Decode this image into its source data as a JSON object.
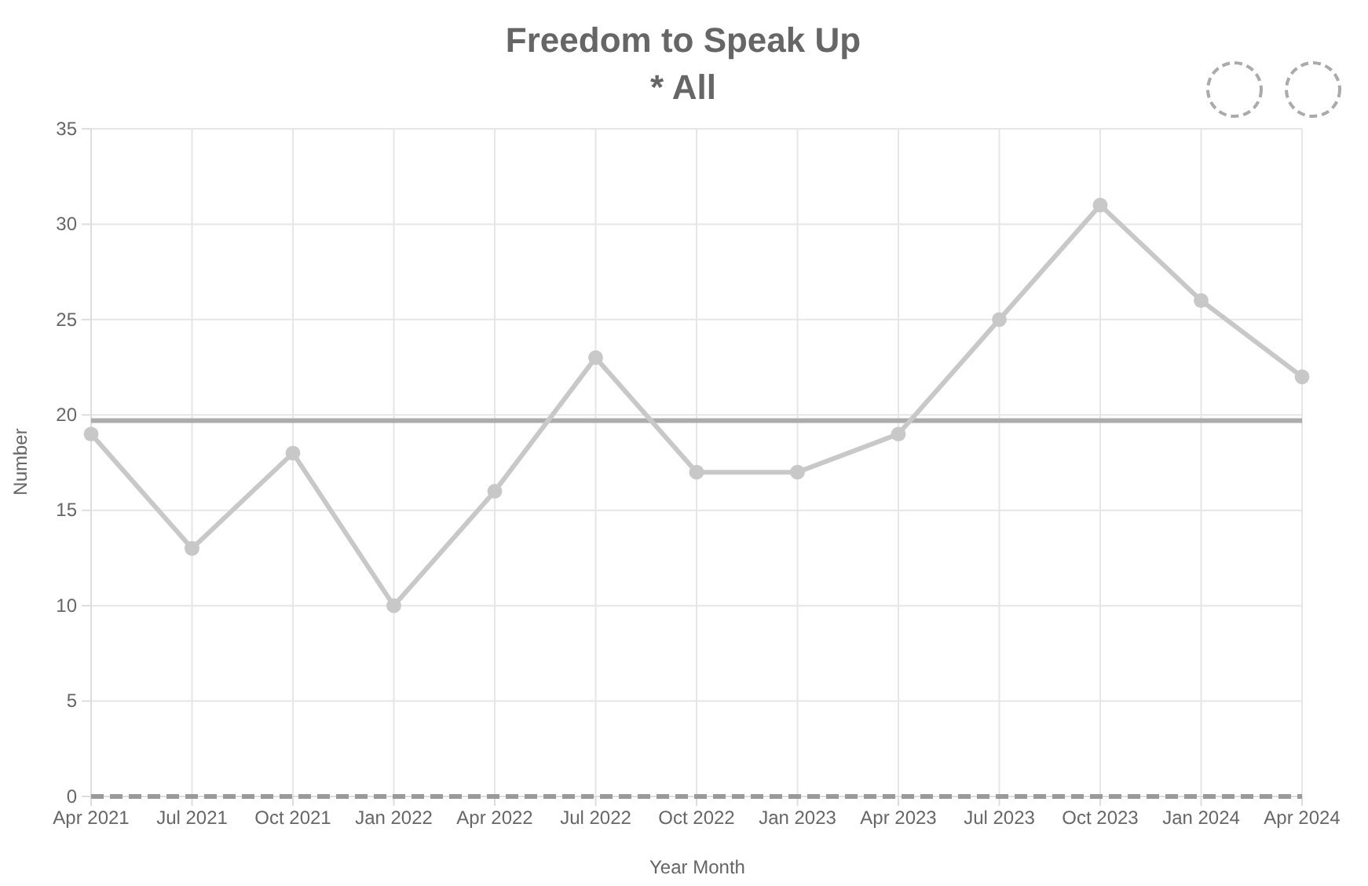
{
  "chart_data": {
    "type": "line",
    "title": "Freedom to Speak Up",
    "subtitle": "* All",
    "xlabel": "Year Month",
    "ylabel": "Number",
    "categories": [
      "Apr 2021",
      "Jul 2021",
      "Oct 2021",
      "Jan 2022",
      "Apr 2022",
      "Jul 2022",
      "Oct 2022",
      "Jan 2023",
      "Apr 2023",
      "Jul 2023",
      "Oct 2023",
      "Jan 2024",
      "Apr 2024"
    ],
    "series": [
      {
        "color": "#c8c8c8",
        "values": [
          19,
          13,
          18,
          10,
          16,
          23,
          17,
          17,
          19,
          25,
          31,
          26,
          22
        ]
      }
    ],
    "ylim": [
      0,
      35
    ],
    "yticks": [
      0,
      5,
      10,
      15,
      20,
      25,
      30,
      35
    ],
    "grid": true,
    "marker": "circle",
    "line_style": "solid",
    "ref_lines": [
      {
        "axis": "y",
        "value": 19.7,
        "color": "#acacac",
        "line_style": "solid"
      },
      {
        "axis": "y",
        "value": 0,
        "color": "#9a9a9a",
        "line_style": "dashed"
      }
    ]
  }
}
